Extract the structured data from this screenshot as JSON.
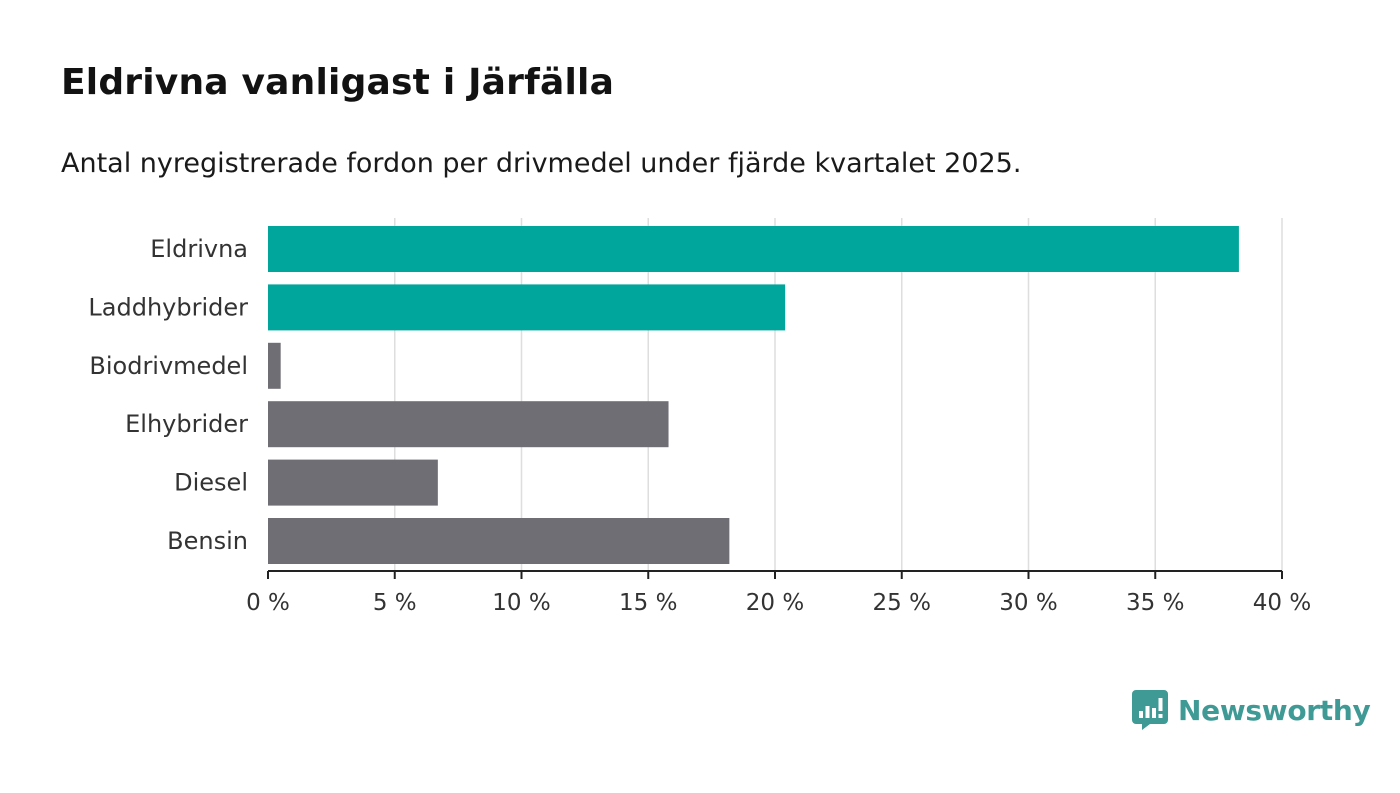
{
  "header": {
    "title": "Eldrivna vanligast i Järfälla",
    "subtitle": "Antal nyregistrerade fordon per drivmedel under fjärde kvartalet 2025."
  },
  "colors": {
    "highlight": "#00a59b",
    "muted": "#6f6e75",
    "grid": "#dedede",
    "axis": "#222222",
    "brand": "#3f9a96"
  },
  "chart_data": {
    "type": "bar",
    "orientation": "horizontal",
    "title": "Eldrivna vanligast i Järfälla",
    "subtitle": "Antal nyregistrerade fordon per drivmedel under fjärde kvartalet 2025.",
    "categories": [
      "Eldrivna",
      "Laddhybrider",
      "Biodrivmedel",
      "Elhybrider",
      "Diesel",
      "Bensin"
    ],
    "values": [
      38.3,
      20.4,
      0.5,
      15.8,
      6.7,
      18.2
    ],
    "highlighted": [
      true,
      true,
      false,
      false,
      false,
      false
    ],
    "unit": "%",
    "xlim": [
      0,
      40
    ],
    "ticks": [
      0,
      5,
      10,
      15,
      20,
      25,
      30,
      35,
      40
    ],
    "tick_labels": [
      "0 %",
      "5 %",
      "10 %",
      "15 %",
      "20 %",
      "25 %",
      "30 %",
      "35 %",
      "40 %"
    ],
    "grid": true,
    "xlabel": "",
    "ylabel": ""
  },
  "footer": {
    "brand": "Newsworthy",
    "logo_icon": "newsworthy-bar-chart-icon"
  }
}
